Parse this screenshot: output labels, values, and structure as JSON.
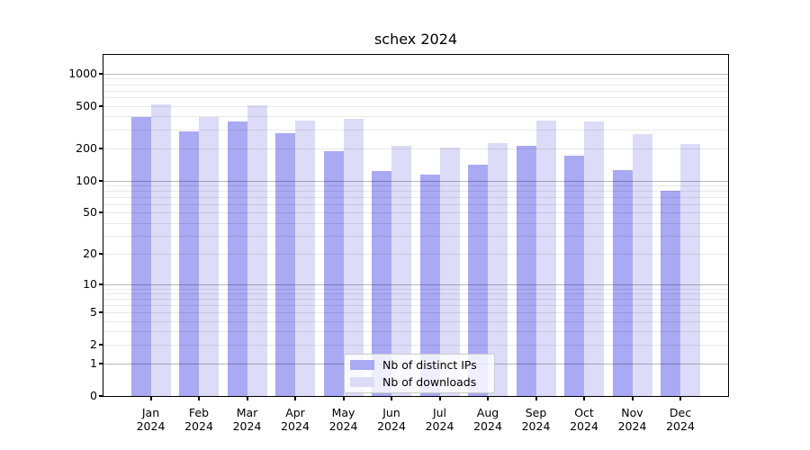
{
  "title": "schex 2024",
  "legend": {
    "items": [
      {
        "label": "Nb of distinct IPs",
        "color": "#a9a9f4"
      },
      {
        "label": "Nb of downloads",
        "color": "#dcdcf8"
      }
    ]
  },
  "chart_data": {
    "type": "bar",
    "title": "schex 2024",
    "categories": [
      "Jan",
      "Feb",
      "Mar",
      "Apr",
      "May",
      "Jun",
      "Jul",
      "Aug",
      "Sep",
      "Oct",
      "Nov",
      "Dec"
    ],
    "x_year": "2024",
    "series": [
      {
        "name": "Nb of distinct IPs",
        "color": "#a9a9f4",
        "values": [
          396,
          288,
          361,
          282,
          190,
          123,
          114,
          143,
          214,
          173,
          126,
          80
        ]
      },
      {
        "name": "Nb of downloads",
        "color": "#dcdcf8",
        "values": [
          520,
          396,
          507,
          369,
          379,
          211,
          206,
          225,
          365,
          362,
          272,
          220
        ]
      }
    ],
    "yticks": [
      0,
      1,
      2,
      5,
      10,
      20,
      50,
      100,
      200,
      500,
      1000
    ],
    "scale": "log1p",
    "ylim": [
      0,
      1500
    ],
    "grid": true,
    "grid_major_at": [
      1,
      10,
      100,
      1000
    ],
    "legend_position": "lower center",
    "xlabel": "",
    "ylabel": ""
  }
}
